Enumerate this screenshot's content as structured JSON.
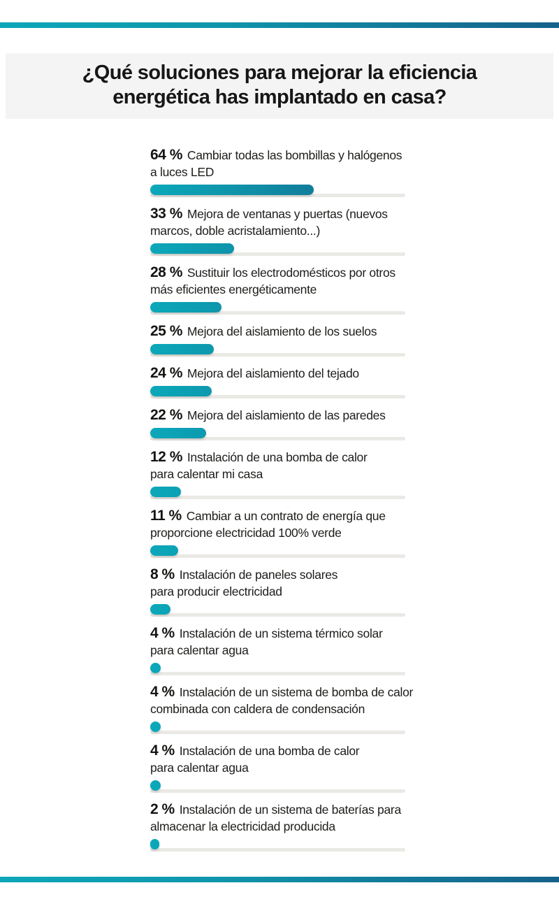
{
  "accent": {
    "gradient_start": "#0ca7b9",
    "gradient_end": "#15618a"
  },
  "title": "¿Qué soluciones para mejorar la eficiencia\nenergética has implantado en casa?",
  "chart_data": {
    "type": "bar",
    "orientation": "horizontal",
    "unit": "%",
    "xlim": [
      0,
      100
    ],
    "grid": false,
    "legend": false,
    "title": "¿Qué soluciones para mejorar la eficiencia energética has implantado en casa?",
    "bar_gradient": [
      "#0ba8ba",
      "#14608a"
    ],
    "track_color": "#eae9e4",
    "categories": [
      "Cambiar todas las bombillas y halógenos a luces LED",
      "Mejora de ventanas y puertas (nuevos marcos, doble acristalamiento...)",
      "Sustituir los electrodomésticos por otros más eficientes energéticamente",
      "Mejora del aislamiento de los suelos",
      "Mejora del aislamiento del tejado",
      "Mejora del aislamiento de las paredes",
      "Instalación de una bomba de calor para calentar mi casa",
      "Cambiar a un contrato de energía que proporcione electricidad 100% verde",
      "Instalación de paneles solares para producir electricidad",
      "Instalación de un sistema térmico solar para calentar agua",
      "Instalación de un sistema de bomba de calor combinada con caldera de condensación",
      "Instalación de una bomba de calor para calentar agua",
      "Instalación de un sistema de baterías para almacenar la electricidad producida"
    ],
    "values": [
      64,
      33,
      28,
      25,
      24,
      22,
      12,
      11,
      8,
      4,
      4,
      4,
      2
    ]
  },
  "rows": [
    {
      "pct": "64 %",
      "value": 64,
      "desc": "Cambiar todas las bombillas y halógenos\na luces LED"
    },
    {
      "pct": "33 %",
      "value": 33,
      "desc": "Mejora de ventanas y puertas (nuevos\nmarcos, doble acristalamiento...)"
    },
    {
      "pct": "28 %",
      "value": 28,
      "desc": "Sustituir los electrodomésticos por otros\nmás eficientes energéticamente"
    },
    {
      "pct": "25 %",
      "value": 25,
      "desc": "Mejora del aislamiento de los suelos"
    },
    {
      "pct": "24 %",
      "value": 24,
      "desc": "Mejora del aislamiento del tejado"
    },
    {
      "pct": "22 %",
      "value": 22,
      "desc": "Mejora del aislamiento de las paredes"
    },
    {
      "pct": "12 %",
      "value": 12,
      "desc": "Instalación de una bomba de calor\npara calentar mi casa"
    },
    {
      "pct": "11 %",
      "value": 11,
      "desc": "Cambiar a un contrato de energía que\nproporcione electricidad 100% verde"
    },
    {
      "pct": "8 %",
      "value": 8,
      "desc": "Instalación de paneles solares\npara producir electricidad"
    },
    {
      "pct": "4 %",
      "value": 4,
      "desc": "Instalación de un sistema térmico solar\npara calentar agua"
    },
    {
      "pct": "4 %",
      "value": 4,
      "desc": "Instalación de un sistema de bomba de calor\ncombinada con caldera de condensación"
    },
    {
      "pct": "4 %",
      "value": 4,
      "desc": "Instalación de una bomba de calor\npara calentar agua"
    },
    {
      "pct": "2 %",
      "value": 2,
      "desc": "Instalación de un sistema de baterías para\nalmacenar la electricidad producida"
    }
  ]
}
